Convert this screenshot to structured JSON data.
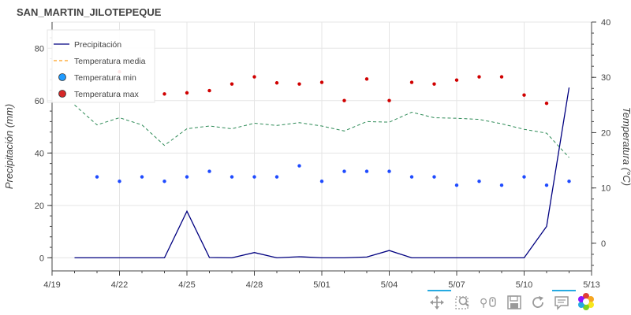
{
  "chart_data": {
    "type": "line",
    "title": "SAN_MARTIN_JILOTEPEQUE",
    "ylabel": "Precipitación (mm)",
    "y2label": "Temperatura (°C)",
    "xlabel": "",
    "ylim": [
      -5,
      90
    ],
    "y2lim": [
      -5,
      40
    ],
    "yticks": [
      0,
      20,
      40,
      60,
      80
    ],
    "y2ticks": [
      0,
      10,
      20,
      30,
      40
    ],
    "x_start_day": 0,
    "x_end_day": 24,
    "xticks": [
      {
        "day": 0,
        "label": "4/19"
      },
      {
        "day": 3,
        "label": "4/22"
      },
      {
        "day": 6,
        "label": "4/25"
      },
      {
        "day": 9,
        "label": "4/28"
      },
      {
        "day": 12,
        "label": "5/01"
      },
      {
        "day": 15,
        "label": "5/04"
      },
      {
        "day": 18,
        "label": "5/07"
      },
      {
        "day": 21,
        "label": "5/10"
      },
      {
        "day": 24,
        "label": "5/13"
      }
    ],
    "legend": [
      {
        "label": "Precipitación",
        "kind": "line",
        "color": "#000080"
      },
      {
        "label": "Temperatura media",
        "kind": "dash",
        "color": "#ff9f1c"
      },
      {
        "label": "Temperatura min",
        "kind": "circle",
        "color": "#1f9bff"
      },
      {
        "label": "Temperatura max",
        "kind": "circle",
        "color": "#d62728"
      }
    ],
    "legend_position": "top-left",
    "series": [
      {
        "name": "Precipitación",
        "axis": "left",
        "color": "#000080",
        "style": "line",
        "x": [
          1,
          2,
          3,
          4,
          5,
          6,
          7,
          8,
          9,
          10,
          11,
          12,
          13,
          14,
          15,
          16,
          17,
          18,
          19,
          20,
          21,
          22,
          23
        ],
        "values": [
          0,
          0,
          0,
          0,
          0,
          17.8,
          0.1,
          0,
          2.0,
          0,
          0.4,
          0,
          0,
          0.3,
          2.8,
          0,
          0,
          0,
          0,
          0,
          0,
          12,
          65
        ]
      },
      {
        "name": "Temperatura media",
        "axis": "right",
        "color": "#2e8b57",
        "style": "dashed",
        "x": [
          1,
          2,
          3,
          4,
          5,
          6,
          7,
          8,
          9,
          10,
          11,
          12,
          13,
          14,
          15,
          16,
          17,
          18,
          19,
          20,
          21,
          22,
          23
        ],
        "values": [
          25,
          21.4,
          22.7,
          21.4,
          17.7,
          20.7,
          21.2,
          20.7,
          21.7,
          21.3,
          21.8,
          21.2,
          20.3,
          22,
          21.9,
          23.7,
          22.7,
          22.6,
          22.4,
          21.6,
          20.6,
          19.9,
          15.5
        ]
      },
      {
        "name": "Temperatura min",
        "axis": "right",
        "color": "#1f4bff",
        "style": "points",
        "x": [
          2,
          3,
          4,
          5,
          6,
          7,
          8,
          9,
          10,
          11,
          12,
          13,
          14,
          15,
          16,
          17,
          18,
          19,
          20,
          21,
          22,
          23
        ],
        "values": [
          12,
          11.2,
          12,
          11.2,
          12,
          13,
          12,
          12,
          12,
          14,
          11.2,
          13,
          13,
          13,
          12,
          12,
          10.5,
          11.2,
          10.5,
          12,
          10.5,
          11.2
        ]
      },
      {
        "name": "Temperatura max",
        "axis": "right",
        "color": "#d00000",
        "style": "points",
        "x": [
          3,
          5,
          6,
          7,
          8,
          9,
          10,
          11,
          12,
          13,
          14,
          15,
          16,
          17,
          18,
          19,
          20,
          21,
          22
        ],
        "values": [
          31,
          27,
          27.2,
          27.6,
          28.8,
          30.1,
          29,
          28.8,
          29.1,
          25.8,
          29.7,
          25.8,
          29.1,
          28.8,
          29.5,
          30.1,
          30.1,
          26.8,
          25.3
        ]
      }
    ]
  },
  "toolbar": {
    "tools": [
      "pan-tool-icon",
      "box-zoom-tool-icon",
      "wheel-zoom-tool-icon",
      "save-tool-icon",
      "reset-tool-icon",
      "hover-tool-icon",
      "bokeh-logo-icon"
    ],
    "active": [
      "pan-tool-icon",
      "hover-tool-icon"
    ]
  }
}
